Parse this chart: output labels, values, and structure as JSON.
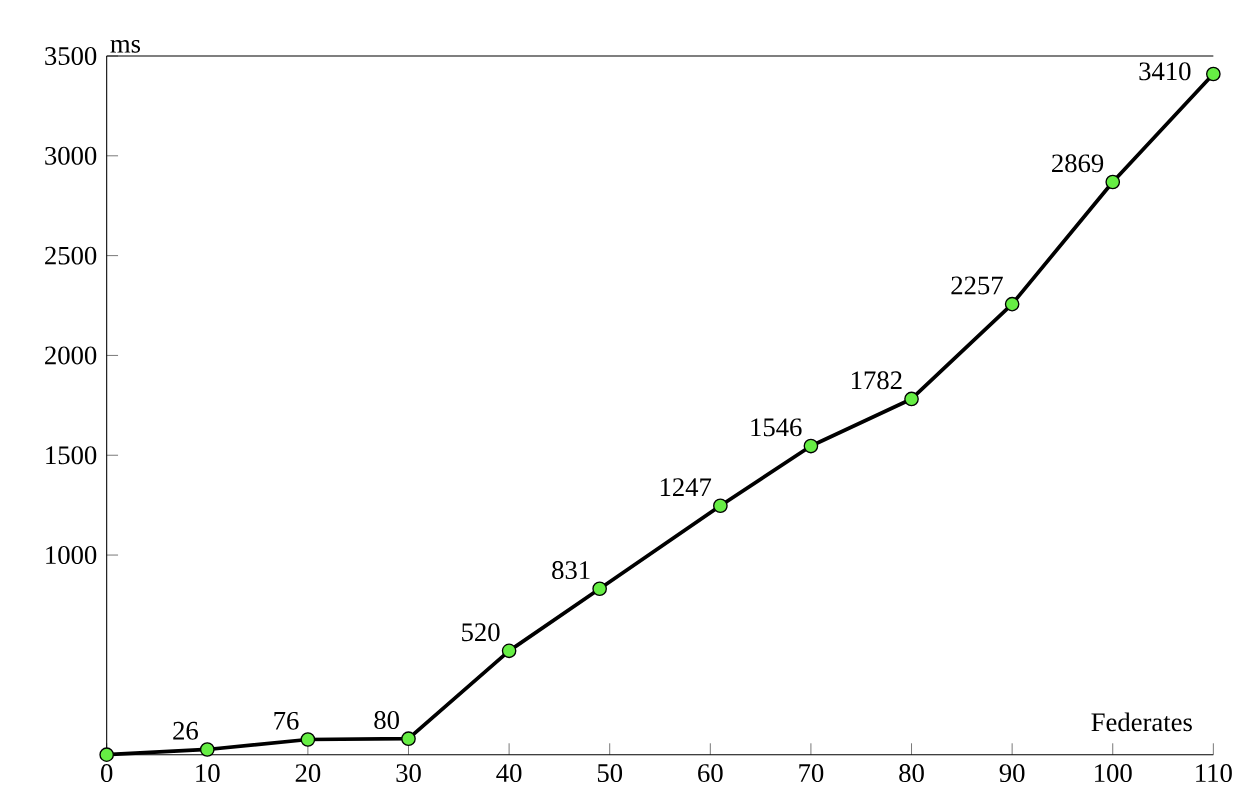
{
  "chart_data": {
    "type": "line",
    "xlabel": "Federates",
    "ylabel": "ms",
    "x": [
      0,
      10,
      20,
      30,
      40,
      49,
      61,
      70,
      80,
      90,
      100,
      110
    ],
    "series": [
      {
        "color": "#000000",
        "values": [
          0,
          26,
          76,
          80,
          520,
          831,
          1247,
          1546,
          1782,
          2257,
          2869,
          3410
        ],
        "value_labels": [
          null,
          "26",
          "76",
          "80",
          "520",
          "831",
          "1247",
          "1546",
          "1782",
          "2257",
          "2869",
          "3410"
        ]
      }
    ],
    "xlim": [
      0,
      110
    ],
    "ylim": [
      0,
      3500
    ],
    "xticks": [
      0,
      10,
      20,
      30,
      40,
      50,
      60,
      70,
      80,
      90,
      100,
      110
    ],
    "yticks": [
      1000,
      1500,
      2000,
      2500,
      3000,
      3500
    ],
    "marker": "circle",
    "line_style": "solid"
  }
}
